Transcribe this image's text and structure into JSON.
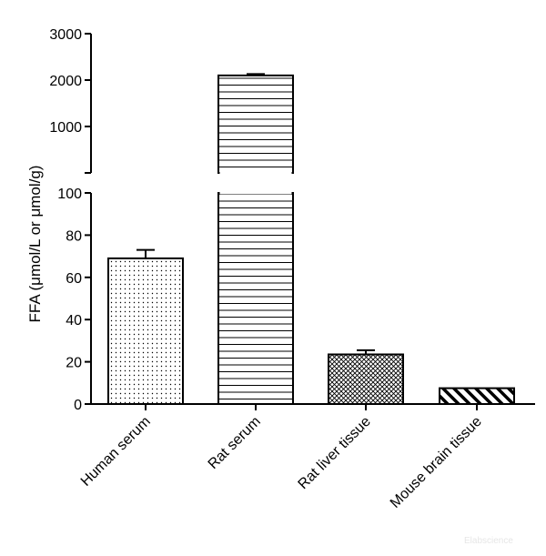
{
  "chart_data": {
    "type": "bar",
    "categories": [
      "Human serum",
      "Rat serum",
      "Rat liver tissue",
      "Mouse brain tissue"
    ],
    "values": [
      69,
      2100,
      23.5,
      7.5
    ],
    "errors": [
      4,
      30,
      2,
      0
    ],
    "patterns": [
      "dots",
      "hlines",
      "crosshatch",
      "diagonal"
    ],
    "ylabel": "FFA (μmol/L or μmol/g)",
    "y_axis": {
      "broken": true,
      "lower_range": [
        0,
        100
      ],
      "lower_ticks": [
        0,
        20,
        40,
        60,
        80,
        100
      ],
      "upper_range": [
        0,
        3000
      ],
      "upper_ticks": [
        1000,
        2000,
        3000
      ]
    },
    "grid": false,
    "legend": "none"
  },
  "watermark": "Elabscience"
}
